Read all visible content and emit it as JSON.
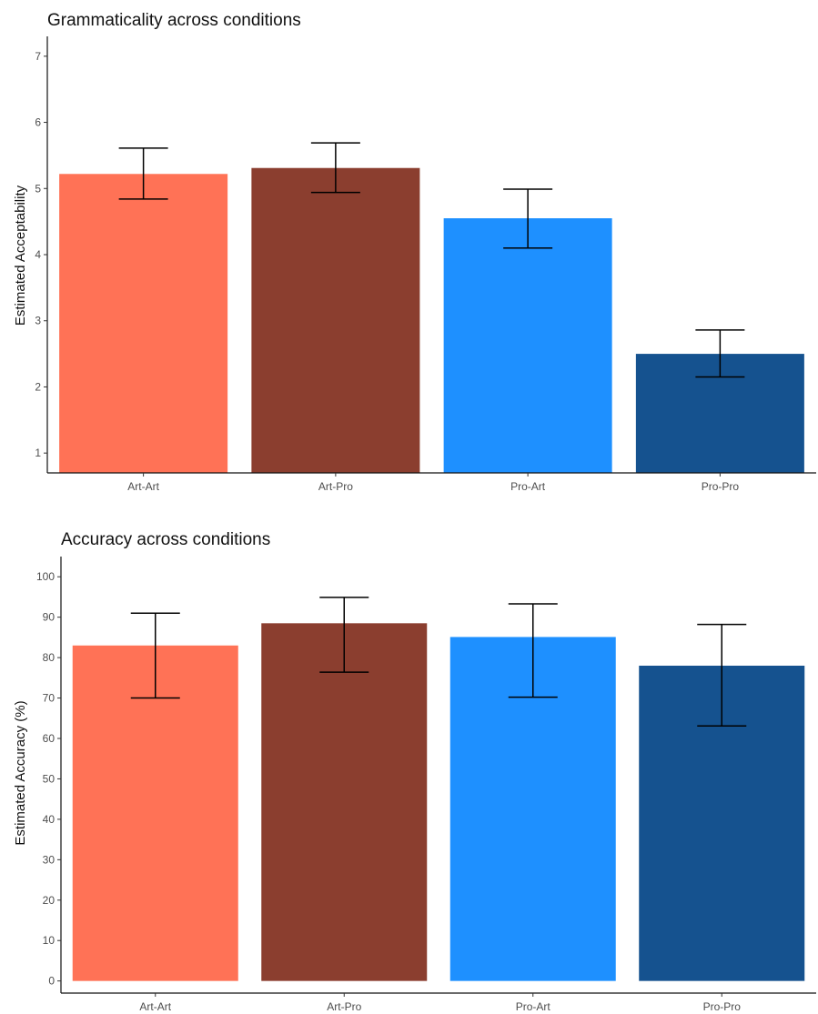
{
  "chart_data": [
    {
      "type": "bar",
      "title": "Grammaticality across conditions",
      "xlabel": "",
      "ylabel": "Estimated Acceptability",
      "ylim": [
        0.7,
        7.3
      ],
      "yticks": [
        1,
        2,
        3,
        4,
        5,
        6,
        7
      ],
      "categories": [
        "Art-Art",
        "Art-Pro",
        "Pro-Art",
        "Pro-Pro"
      ],
      "values": [
        5.22,
        5.31,
        4.55,
        2.5
      ],
      "error_low": [
        4.84,
        4.94,
        4.1,
        2.15
      ],
      "error_high": [
        5.61,
        5.69,
        4.99,
        2.86
      ],
      "colors": [
        "#ff7256",
        "#8b3e2f",
        "#1e90ff",
        "#15528f"
      ],
      "grid": false,
      "legend": "none"
    },
    {
      "type": "bar",
      "title": "Accuracy across conditions",
      "xlabel": "",
      "ylabel": "Estimated Accuracy (%)",
      "ylim": [
        -3,
        105
      ],
      "yticks": [
        0,
        10,
        20,
        30,
        40,
        50,
        60,
        70,
        80,
        90,
        100
      ],
      "categories": [
        "Art-Art",
        "Art-Pro",
        "Pro-Art",
        "Pro-Pro"
      ],
      "values": [
        83,
        88.5,
        85.1,
        78
      ],
      "error_low": [
        70,
        76.4,
        70.2,
        63.1
      ],
      "error_high": [
        91,
        94.9,
        93.3,
        88.2
      ],
      "colors": [
        "#ff7256",
        "#8b3e2f",
        "#1e90ff",
        "#15528f"
      ],
      "grid": false,
      "legend": "none"
    }
  ]
}
